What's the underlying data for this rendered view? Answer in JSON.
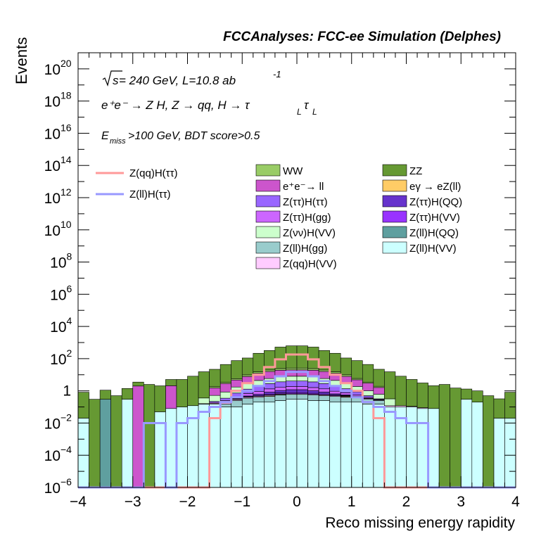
{
  "chart_data": {
    "type": "histogram",
    "title": "FCCAnalyses: FCC-ee Simulation (Delphes)",
    "xlabel": "Reco missing energy rapidity",
    "ylabel": "Events",
    "xlim": [
      -4,
      4
    ],
    "ylim": [
      1e-06,
      1e+21
    ],
    "yscale": "log",
    "x_tick_labels": [
      "−4",
      "−3",
      "−2",
      "−1",
      "0",
      "1",
      "2",
      "3",
      "4"
    ],
    "y_tick_labels": [
      {
        "base": "10",
        "exp": "−6"
      },
      {
        "base": "10",
        "exp": "−4"
      },
      {
        "base": "10",
        "exp": "−2"
      },
      {
        "base": "1",
        "exp": ""
      },
      {
        "base": "10",
        "exp": "2"
      },
      {
        "base": "10",
        "exp": "4"
      },
      {
        "base": "10",
        "exp": "6"
      },
      {
        "base": "10",
        "exp": "8"
      },
      {
        "base": "10",
        "exp": "10"
      },
      {
        "base": "10",
        "exp": "12"
      },
      {
        "base": "10",
        "exp": "14"
      },
      {
        "base": "10",
        "exp": "16"
      },
      {
        "base": "10",
        "exp": "18"
      },
      {
        "base": "10",
        "exp": "20"
      }
    ],
    "annotations": {
      "energy_sqrt": "s",
      "energy_rest": " = 240 GeV, L=10.8 ab",
      "energy_sup": "-1",
      "process": "e⁺e⁻ → Z H, Z  → qq, H  → τ",
      "process_sub1": "L",
      "process_tau2": "τ",
      "process_sub2": "L",
      "cut_E": "E",
      "cut_sub": "miss",
      "cut_rest": ">100 GeV, BDT score>0.5"
    },
    "bin_edges": [
      -4,
      -3.8,
      -3.6,
      -3.4,
      -3.2,
      -3,
      -2.8,
      -2.6,
      -2.4,
      -2.2,
      -2,
      -1.8,
      -1.6,
      -1.4,
      -1.2,
      -1,
      -0.8,
      -0.6,
      -0.4,
      -0.2,
      0,
      0.2,
      0.4,
      0.6,
      0.8,
      1,
      1.2,
      1.4,
      1.6,
      1.8,
      2,
      2.2,
      2.4,
      2.6,
      2.8,
      3,
      3.2,
      3.4,
      3.6,
      3.8,
      4
    ],
    "stacked_series": [
      {
        "name": "Z(ll)H(VV)",
        "color": "#ccffff",
        "values": [
          0.02,
          0,
          0,
          0,
          0.3,
          0,
          0,
          0.05,
          0.08,
          0.1,
          0.12,
          0.15,
          0.15,
          0.1,
          0.1,
          0.15,
          0.2,
          0.2,
          0.25,
          0.3,
          0.3,
          0.25,
          0.25,
          0.2,
          0.2,
          0.2,
          0.15,
          0.15,
          0.1,
          0.1,
          0.1,
          0.08,
          0.08,
          0,
          0,
          0.3,
          0.2,
          0,
          0.02,
          0.02
        ]
      },
      {
        "name": "Z(ll)H(QQ)",
        "color": "#5f9f9f",
        "values": [
          0,
          0,
          0.3,
          0,
          0,
          0,
          0,
          0,
          0,
          0,
          0,
          0,
          0,
          0,
          0,
          0,
          0,
          0,
          0,
          0,
          0,
          0,
          0,
          0,
          0,
          0,
          0,
          0,
          0,
          0,
          0,
          0,
          0,
          0,
          0,
          0,
          0,
          0,
          0,
          0
        ]
      },
      {
        "name": "Z(ll)H(gg)",
        "color": "#99cccc",
        "values": [
          0,
          0,
          0,
          0,
          0,
          0,
          0,
          0,
          0,
          0,
          0,
          0,
          0,
          0.05,
          0.15,
          0.2,
          0.2,
          0.25,
          0.3,
          0.3,
          0.3,
          0.3,
          0.25,
          0.25,
          0.2,
          0.2,
          0.15,
          0.1,
          0,
          0,
          0,
          0,
          0,
          0,
          0,
          0,
          0,
          0,
          0,
          0
        ]
      },
      {
        "name": "eγ → eZ(ll)",
        "color": "#ffcc66",
        "values": [
          0,
          0,
          0,
          0,
          0,
          0,
          0,
          0,
          0,
          0,
          0,
          0,
          0,
          0,
          0,
          0,
          0,
          0.04,
          0.04,
          0,
          0,
          0,
          0,
          0,
          0.04,
          0,
          0,
          0,
          0,
          0,
          0,
          0,
          0,
          0,
          0,
          0,
          0,
          0,
          0,
          0
        ]
      },
      {
        "name": "Z(qq)H(VV)",
        "color": "#ffccff",
        "values": [
          0,
          0,
          0,
          0,
          0,
          0,
          0,
          0,
          0,
          0,
          0,
          0.01,
          0.02,
          0.03,
          0.04,
          0.05,
          0.06,
          0.06,
          0.06,
          0.06,
          0.06,
          0.06,
          0.06,
          0.05,
          0.04,
          0.03,
          0.03,
          0.02,
          0.02,
          0.02,
          0.01,
          0.01,
          0,
          0,
          0,
          0,
          0,
          0,
          0,
          0
        ]
      },
      {
        "name": "Z(ττ)H(VV)",
        "color": "#9933ff",
        "values": [
          0,
          0,
          0,
          0,
          0,
          0,
          0,
          0,
          0,
          0,
          0,
          0,
          0,
          0.01,
          0.02,
          0.03,
          0.05,
          0.08,
          0.1,
          0.12,
          0.12,
          0.1,
          0.08,
          0.05,
          0.03,
          0.02,
          0.01,
          0,
          0,
          0,
          0,
          0,
          0,
          0,
          0,
          0,
          0,
          0,
          0,
          0
        ]
      },
      {
        "name": "Z(ττ)H(QQ)",
        "color": "#6633cc",
        "values": [
          0,
          0,
          0,
          0,
          0,
          0,
          0,
          0,
          0,
          0,
          0,
          0,
          0,
          0.01,
          0.02,
          0.05,
          0.1,
          0.2,
          0.3,
          0.4,
          0.4,
          0.3,
          0.2,
          0.1,
          0.05,
          0.02,
          0.01,
          0,
          0,
          0,
          0,
          0,
          0,
          0,
          0,
          0,
          0,
          0,
          0,
          0
        ]
      },
      {
        "name": "Z(ττ)H(gg)",
        "color": "#cc66ff",
        "values": [
          0,
          0,
          0,
          0,
          0,
          0,
          0,
          0,
          0,
          0,
          0,
          0,
          0.02,
          0.05,
          0.1,
          0.2,
          0.3,
          0.5,
          0.6,
          0.7,
          0.7,
          0.6,
          0.5,
          0.3,
          0.2,
          0.1,
          0.05,
          0.02,
          0,
          0,
          0,
          0,
          0,
          0,
          0,
          0,
          0,
          0,
          0,
          0
        ]
      },
      {
        "name": "Z(ττ)H(ττ)",
        "color": "#9966ff",
        "values": [
          0,
          0,
          0,
          0,
          0,
          0,
          0,
          0,
          0,
          0,
          0,
          0,
          0.03,
          0.1,
          0.3,
          0.6,
          1,
          1.5,
          2,
          2.2,
          2.2,
          2,
          1.5,
          1,
          0.6,
          0.3,
          0.1,
          0.03,
          0,
          0,
          0,
          0,
          0,
          0,
          0,
          0,
          0,
          0,
          0,
          0
        ]
      },
      {
        "name": "Z(νν)H(VV)",
        "color": "#ccffcc",
        "values": [
          0,
          0,
          0,
          0,
          0,
          0,
          0,
          0,
          0,
          0,
          0,
          0.2,
          0.3,
          0.5,
          1,
          1.5,
          2.5,
          3,
          3.5,
          4,
          4,
          3.5,
          3,
          2.5,
          1.5,
          1,
          0.5,
          0.3,
          0.2,
          0,
          0,
          0,
          0,
          0,
          0,
          0,
          0,
          0,
          0,
          0
        ]
      },
      {
        "name": "e⁺e⁻→ ll",
        "color": "#cc55cc",
        "values": [
          0,
          0,
          0,
          0,
          0,
          2,
          0,
          0,
          2,
          0,
          0,
          0,
          1,
          2,
          3,
          5,
          8,
          10,
          12,
          12,
          12,
          12,
          10,
          8,
          5,
          3,
          2,
          1,
          0,
          0,
          0,
          0,
          0,
          0,
          0,
          0,
          0,
          0,
          0,
          0
        ]
      },
      {
        "name": "WW",
        "color": "#99cc66",
        "values": [
          0,
          0,
          0,
          0,
          0,
          0,
          0,
          0,
          0,
          0,
          0,
          0,
          0.3,
          0.5,
          1,
          2,
          3,
          4,
          5,
          6,
          6,
          5,
          4,
          3,
          2,
          1,
          0.5,
          0.3,
          0,
          0,
          0,
          0,
          0,
          0,
          0,
          0,
          0,
          0,
          0,
          0
        ]
      },
      {
        "name": "ZZ",
        "color": "#669933",
        "values": [
          0.8,
          0.3,
          0.8,
          0.5,
          1.1,
          1.5,
          2.5,
          2,
          3,
          5,
          8,
          15,
          20,
          40,
          70,
          100,
          200,
          300,
          500,
          600,
          600,
          500,
          300,
          200,
          100,
          70,
          40,
          20,
          15,
          8,
          5,
          3,
          2,
          2.5,
          1.5,
          1,
          0.8,
          0.5,
          0.3,
          0.8
        ]
      }
    ],
    "line_series": [
      {
        "name": "Z(qq)H(ττ)",
        "color": "#ff9999",
        "values": [
          0,
          0,
          0,
          0,
          0,
          0,
          0,
          0,
          0,
          0,
          0,
          0,
          0.02,
          0.2,
          1,
          3,
          10,
          30,
          90,
          180,
          180,
          90,
          30,
          10,
          3,
          1,
          0.2,
          0.02,
          0,
          0,
          0,
          0,
          0,
          0,
          0,
          0,
          0,
          0,
          0,
          0
        ]
      },
      {
        "name": "Z(ll)H(ττ)",
        "color": "#9999ff",
        "values": [
          0,
          0,
          0,
          0,
          0,
          0,
          0.01,
          0.01,
          0,
          0.01,
          0.02,
          0.05,
          0.1,
          0.2,
          0.4,
          1,
          2,
          4,
          8,
          15,
          15,
          8,
          4,
          2,
          1,
          0.4,
          0.2,
          0.1,
          0.05,
          0.02,
          0.01,
          0.01,
          0,
          0,
          0,
          0,
          0,
          0,
          0,
          0
        ]
      }
    ],
    "legend": {
      "placement": "top-right",
      "columns": [
        [
          "WW",
          "e⁺e⁻→ ll",
          "Z(ττ)H(ττ)",
          "Z(ττ)H(gg)",
          "Z(νν)H(VV)",
          "Z(ll)H(gg)",
          "Z(qq)H(VV)"
        ],
        [
          "ZZ",
          "eγ → eZ(ll)",
          "Z(ττ)H(QQ)",
          "Z(ττ)H(VV)",
          "Z(ll)H(QQ)",
          "Z(ll)H(VV)"
        ]
      ],
      "lines": [
        "Z(qq)H(ττ)",
        "Z(ll)H(ττ)"
      ]
    }
  }
}
